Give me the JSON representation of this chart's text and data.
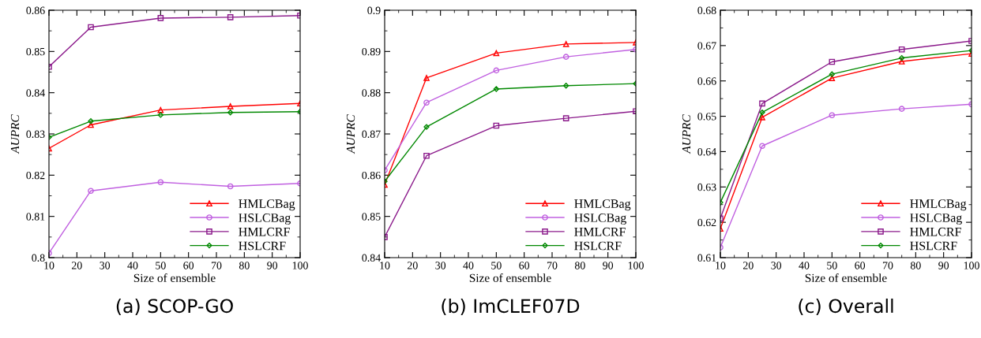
{
  "chart_data": [
    {
      "type": "line",
      "title": "(a) SCOP-GO",
      "xlabel": "Size of ensemble",
      "ylabel": "AUPRC",
      "x": [
        10,
        25,
        50,
        75,
        100
      ],
      "xlim": [
        10,
        100
      ],
      "xticks": [
        10,
        20,
        30,
        40,
        50,
        60,
        70,
        80,
        90,
        100
      ],
      "ylim": [
        0.8,
        0.86
      ],
      "yticks": [
        0.8,
        0.81,
        0.82,
        0.83,
        0.84,
        0.85,
        0.86
      ],
      "legend": "bottom right",
      "grid": false,
      "series": [
        {
          "name": "HMLCBag",
          "color": "#ff0000",
          "marker": "triangle",
          "values": [
            0.8265,
            0.8322,
            0.8358,
            0.8367,
            0.8374
          ]
        },
        {
          "name": "HSLCBag",
          "color": "#c060e0",
          "marker": "circle",
          "values": [
            0.8011,
            0.8162,
            0.8183,
            0.8173,
            0.818
          ]
        },
        {
          "name": "HMLCRF",
          "color": "#8b1a8b",
          "marker": "square",
          "values": [
            0.8463,
            0.8559,
            0.8581,
            0.8583,
            0.8587
          ]
        },
        {
          "name": "HSLCRF",
          "color": "#008800",
          "marker": "diamond",
          "values": [
            0.8292,
            0.8331,
            0.8346,
            0.8352,
            0.8354
          ]
        }
      ]
    },
    {
      "type": "line",
      "title": "(b) ImCLEF07D",
      "xlabel": "Size of ensemble",
      "ylabel": "AUPRC",
      "x": [
        10,
        25,
        50,
        75,
        100
      ],
      "xlim": [
        10,
        100
      ],
      "xticks": [
        10,
        20,
        30,
        40,
        50,
        60,
        70,
        80,
        90,
        100
      ],
      "ylim": [
        0.84,
        0.9
      ],
      "yticks": [
        0.84,
        0.85,
        0.86,
        0.87,
        0.88,
        0.89,
        0.9
      ],
      "legend": "bottom right",
      "grid": false,
      "series": [
        {
          "name": "HMLCBag",
          "color": "#ff0000",
          "marker": "triangle",
          "values": [
            0.8577,
            0.8836,
            0.8896,
            0.8918,
            0.8922
          ]
        },
        {
          "name": "HSLCBag",
          "color": "#c060e0",
          "marker": "circle",
          "values": [
            0.8612,
            0.8776,
            0.8854,
            0.8887,
            0.8905
          ]
        },
        {
          "name": "HMLCRF",
          "color": "#8b1a8b",
          "marker": "square",
          "values": [
            0.845,
            0.8647,
            0.872,
            0.8738,
            0.8755
          ]
        },
        {
          "name": "HSLCRF",
          "color": "#008800",
          "marker": "diamond",
          "values": [
            0.8585,
            0.8717,
            0.8809,
            0.8817,
            0.8822
          ]
        }
      ]
    },
    {
      "type": "line",
      "title": "(c) Overall",
      "xlabel": "Size of ensemble",
      "ylabel": "AUPRC",
      "x": [
        10,
        25,
        50,
        75,
        100
      ],
      "xlim": [
        10,
        100
      ],
      "xticks": [
        10,
        20,
        30,
        40,
        50,
        60,
        70,
        80,
        90,
        100
      ],
      "ylim": [
        0.61,
        0.68
      ],
      "yticks": [
        0.61,
        0.62,
        0.63,
        0.64,
        0.65,
        0.66,
        0.67,
        0.68
      ],
      "legend": "bottom right",
      "grid": false,
      "series": [
        {
          "name": "HMLCBag",
          "color": "#ff0000",
          "marker": "triangle",
          "values": [
            0.6182,
            0.6497,
            0.6608,
            0.6655,
            0.6677
          ]
        },
        {
          "name": "HSLCBag",
          "color": "#c060e0",
          "marker": "circle",
          "values": [
            0.6129,
            0.6416,
            0.6503,
            0.6521,
            0.6534
          ]
        },
        {
          "name": "HMLCRF",
          "color": "#8b1a8b",
          "marker": "square",
          "values": [
            0.6211,
            0.6536,
            0.6654,
            0.6689,
            0.6713
          ]
        },
        {
          "name": "HSLCRF",
          "color": "#008800",
          "marker": "diamond",
          "values": [
            0.6256,
            0.6511,
            0.6619,
            0.6665,
            0.6686
          ]
        }
      ]
    }
  ]
}
